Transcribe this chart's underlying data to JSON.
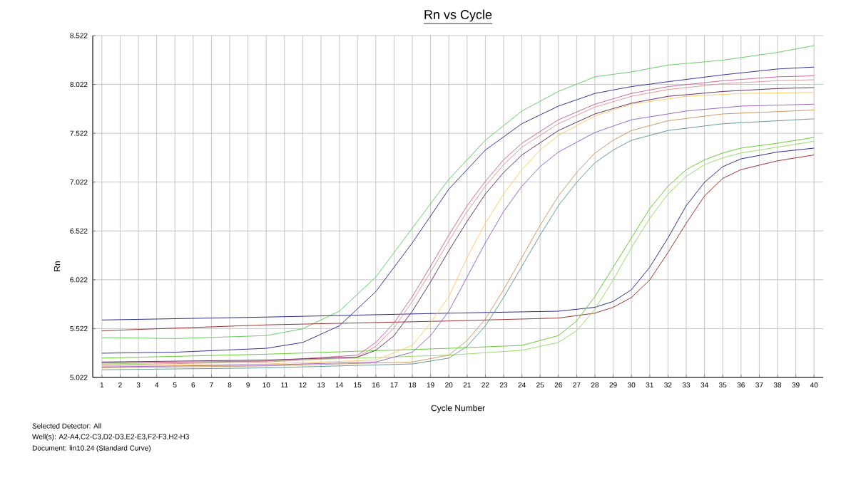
{
  "chart_data": {
    "type": "line",
    "title": "Rn vs Cycle",
    "xlabel": "Cycle Number",
    "ylabel": "Rn",
    "annotations": [
      "Selected Detector: All",
      "Well(s): A2-A4,C2-C3,D2-D3,E2-E3,F2-F3,H2-H3",
      "Document: lin10.24 (Standard Curve)"
    ],
    "xlim": [
      0.5,
      40.5
    ],
    "ylim": [
      5.022,
      8.522
    ],
    "xticks": [
      1,
      2,
      3,
      4,
      5,
      6,
      7,
      8,
      9,
      10,
      11,
      12,
      13,
      14,
      15,
      16,
      17,
      18,
      19,
      20,
      21,
      22,
      23,
      24,
      25,
      26,
      27,
      28,
      29,
      30,
      31,
      32,
      33,
      34,
      35,
      36,
      37,
      38,
      39,
      40
    ],
    "yticks": [
      5.022,
      5.522,
      6.022,
      6.522,
      7.022,
      7.522,
      8.022,
      8.522
    ],
    "grid": true,
    "series": [
      {
        "color": "#66cc66",
        "x": [
          1,
          5,
          10,
          12,
          14,
          16,
          18,
          20,
          22,
          24,
          26,
          28,
          30,
          32,
          35,
          38,
          40
        ],
        "values": [
          5.43,
          5.42,
          5.45,
          5.52,
          5.7,
          6.05,
          6.55,
          7.05,
          7.45,
          7.75,
          7.95,
          8.1,
          8.15,
          8.22,
          8.27,
          8.35,
          8.42
        ]
      },
      {
        "color": "#333399",
        "x": [
          1,
          5,
          10,
          12,
          14,
          16,
          18,
          20,
          22,
          24,
          26,
          28,
          30,
          32,
          35,
          38,
          40
        ],
        "values": [
          5.27,
          5.28,
          5.32,
          5.38,
          5.55,
          5.9,
          6.4,
          6.95,
          7.35,
          7.62,
          7.8,
          7.93,
          8.0,
          8.05,
          8.12,
          8.18,
          8.2
        ]
      },
      {
        "color": "#2b2b8c",
        "x": [
          1,
          10,
          20,
          26,
          28,
          29,
          30,
          31,
          32,
          33,
          34,
          35,
          36,
          38,
          40
        ],
        "values": [
          5.61,
          5.64,
          5.68,
          5.7,
          5.74,
          5.8,
          5.92,
          6.15,
          6.45,
          6.78,
          7.02,
          7.18,
          7.26,
          7.33,
          7.37
        ]
      },
      {
        "color": "#993333",
        "x": [
          1,
          10,
          20,
          26,
          28,
          29,
          30,
          31,
          32,
          33,
          34,
          35,
          36,
          38,
          40
        ],
        "values": [
          5.5,
          5.56,
          5.6,
          5.63,
          5.68,
          5.74,
          5.84,
          6.02,
          6.3,
          6.6,
          6.88,
          7.06,
          7.15,
          7.24,
          7.3
        ]
      },
      {
        "color": "#66cc33",
        "x": [
          1,
          10,
          20,
          24,
          26,
          27,
          28,
          29,
          30,
          31,
          32,
          33,
          34,
          35,
          36,
          38,
          40
        ],
        "values": [
          5.22,
          5.26,
          5.32,
          5.35,
          5.45,
          5.6,
          5.85,
          6.15,
          6.45,
          6.75,
          6.98,
          7.15,
          7.25,
          7.32,
          7.37,
          7.42,
          7.48
        ]
      },
      {
        "color": "#99dd66",
        "x": [
          1,
          10,
          20,
          24,
          26,
          27,
          28,
          29,
          30,
          31,
          32,
          33,
          34,
          35,
          36,
          38,
          40
        ],
        "values": [
          5.16,
          5.19,
          5.25,
          5.3,
          5.38,
          5.5,
          5.72,
          6.02,
          6.35,
          6.65,
          6.9,
          7.08,
          7.2,
          7.27,
          7.32,
          7.38,
          7.44
        ]
      },
      {
        "color": "#cc6699",
        "x": [
          1,
          10,
          15,
          16,
          17,
          18,
          19,
          20,
          21,
          22,
          23,
          24,
          26,
          28,
          30,
          32,
          35,
          38,
          40
        ],
        "values": [
          5.17,
          5.19,
          5.25,
          5.38,
          5.58,
          5.85,
          6.16,
          6.48,
          6.78,
          7.03,
          7.25,
          7.42,
          7.66,
          7.82,
          7.93,
          8.0,
          8.06,
          8.1,
          8.11
        ]
      },
      {
        "color": "#dd9999",
        "x": [
          1,
          10,
          15,
          16,
          17,
          18,
          19,
          20,
          21,
          22,
          23,
          24,
          26,
          28,
          30,
          32,
          35,
          38,
          40
        ],
        "values": [
          5.15,
          5.18,
          5.23,
          5.34,
          5.53,
          5.8,
          6.1,
          6.42,
          6.72,
          6.98,
          7.2,
          7.38,
          7.62,
          7.79,
          7.9,
          7.97,
          8.03,
          8.06,
          8.07
        ]
      },
      {
        "color": "#663366",
        "x": [
          1,
          10,
          15,
          16,
          17,
          18,
          19,
          20,
          21,
          22,
          23,
          24,
          26,
          28,
          30,
          32,
          35,
          38,
          40
        ],
        "values": [
          5.18,
          5.2,
          5.23,
          5.3,
          5.45,
          5.7,
          6.0,
          6.32,
          6.62,
          6.9,
          7.12,
          7.3,
          7.55,
          7.72,
          7.83,
          7.9,
          7.95,
          7.98,
          7.99
        ]
      },
      {
        "color": "#ffcc66",
        "x": [
          1,
          10,
          16,
          18,
          19,
          20,
          21,
          22,
          23,
          24,
          25,
          26,
          28,
          30,
          33,
          36,
          40
        ],
        "values": [
          5.14,
          5.16,
          5.2,
          5.35,
          5.58,
          5.85,
          6.25,
          6.6,
          6.9,
          7.15,
          7.35,
          7.5,
          7.7,
          7.82,
          7.9,
          7.93,
          7.94
        ]
      },
      {
        "color": "#9966cc",
        "x": [
          1,
          10,
          16,
          18,
          19,
          20,
          21,
          22,
          23,
          24,
          25,
          26,
          28,
          30,
          33,
          36,
          40
        ],
        "values": [
          5.13,
          5.15,
          5.18,
          5.28,
          5.45,
          5.7,
          6.05,
          6.4,
          6.72,
          6.98,
          7.18,
          7.33,
          7.53,
          7.66,
          7.75,
          7.8,
          7.82
        ]
      },
      {
        "color": "#cc9966",
        "x": [
          1,
          10,
          18,
          20,
          21,
          22,
          23,
          24,
          25,
          26,
          27,
          28,
          29,
          30,
          32,
          35,
          40
        ],
        "values": [
          5.12,
          5.14,
          5.18,
          5.25,
          5.4,
          5.62,
          5.92,
          6.25,
          6.58,
          6.88,
          7.12,
          7.32,
          7.45,
          7.55,
          7.65,
          7.72,
          7.76
        ]
      },
      {
        "color": "#669999",
        "x": [
          1,
          10,
          18,
          20,
          21,
          22,
          23,
          24,
          25,
          26,
          27,
          28,
          29,
          30,
          32,
          35,
          40
        ],
        "values": [
          5.1,
          5.12,
          5.16,
          5.22,
          5.34,
          5.55,
          5.84,
          6.16,
          6.48,
          6.78,
          7.02,
          7.22,
          7.35,
          7.45,
          7.55,
          7.62,
          7.67
        ]
      }
    ]
  }
}
